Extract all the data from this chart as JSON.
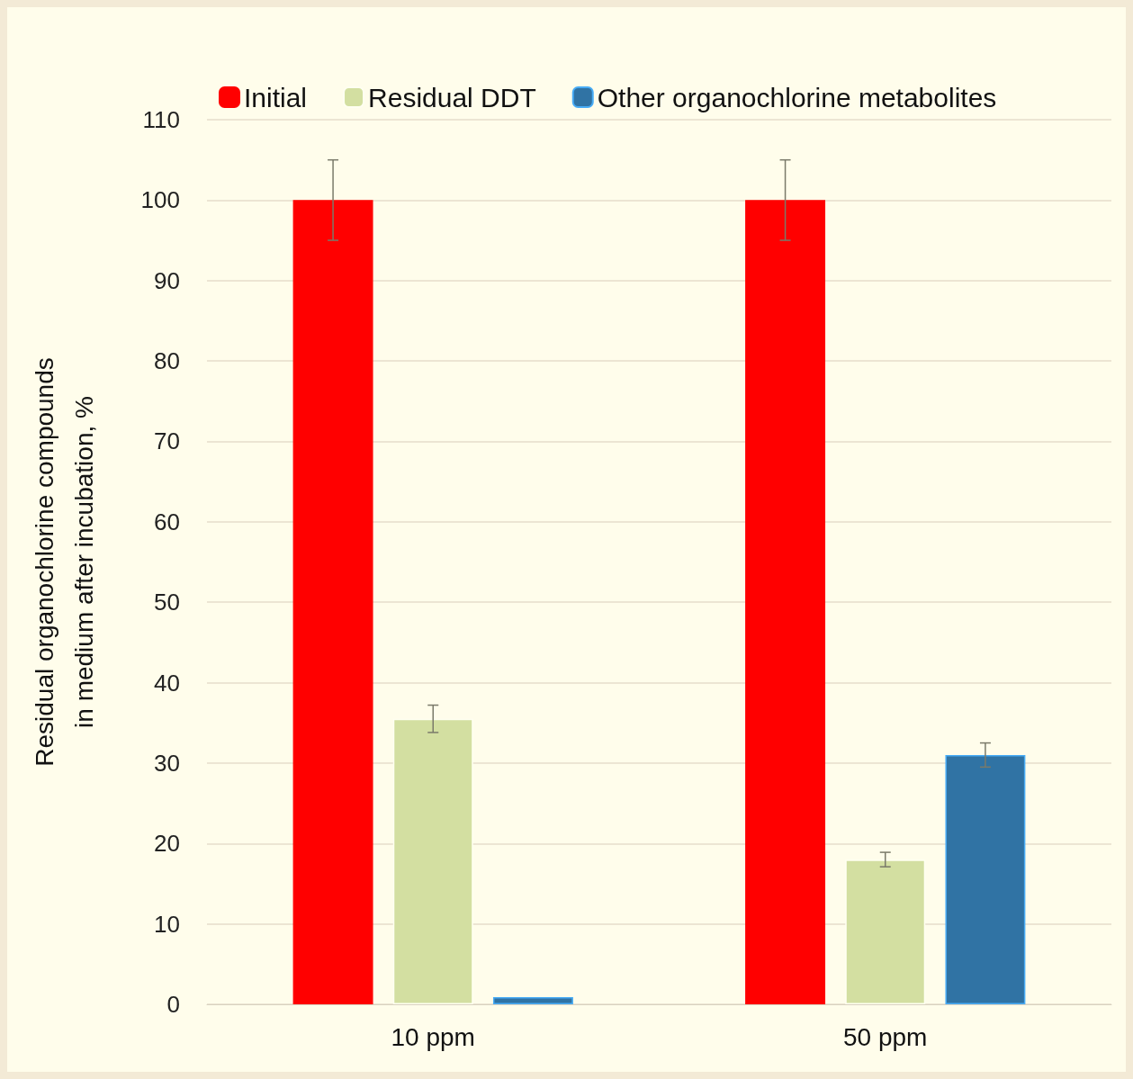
{
  "chart_data": {
    "type": "bar",
    "ylabel": "Residual organochlorine compounds\nin medium after incubation, %",
    "categories": [
      "10 ppm",
      "50 ppm"
    ],
    "series": [
      {
        "name": "Initial",
        "color": "#ff0000",
        "values": [
          100,
          100
        ],
        "errors": [
          5,
          5
        ]
      },
      {
        "name": "Residual DDT",
        "color": "#d3dfa1",
        "values": [
          35.5,
          18
        ],
        "errors": [
          1.7,
          0.9
        ]
      },
      {
        "name": "Other organochlorine metabolites",
        "color": "#3073a4",
        "values": [
          0.9,
          31
        ],
        "errors": [
          null,
          1.5
        ]
      }
    ],
    "ylim": [
      0,
      110
    ],
    "yticks": [
      0,
      10,
      20,
      30,
      40,
      50,
      60,
      70,
      80,
      90,
      100,
      110
    ],
    "grid": "y",
    "legend": "top"
  }
}
